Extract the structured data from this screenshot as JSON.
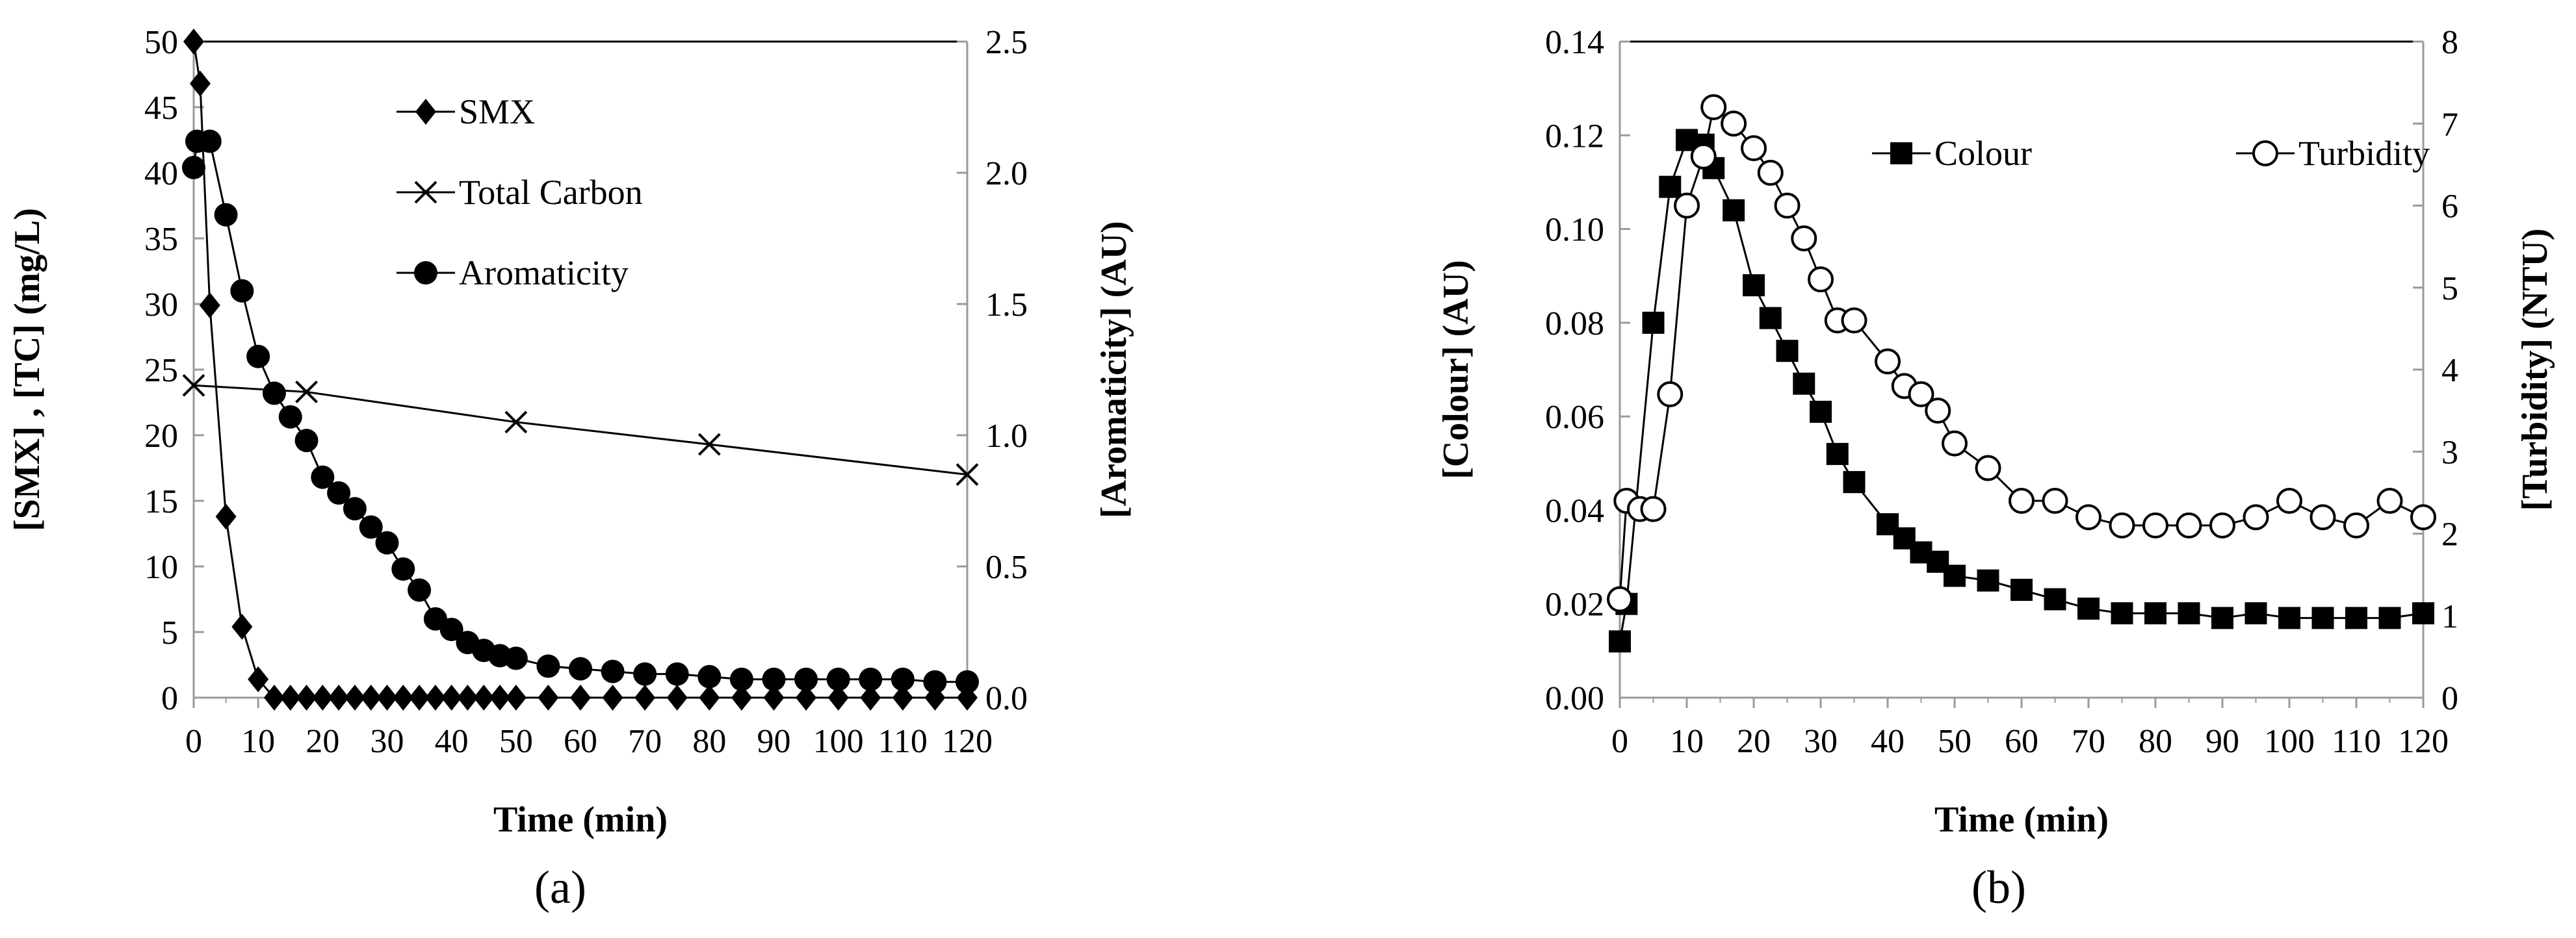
{
  "chart_data": [
    {
      "type": "line",
      "panel_label": "(a)",
      "xlabel": "Time (min)",
      "ylabel": "[SMX] , [TC] (mg/L)",
      "y2label": "[Aromaticity] (AU)",
      "xlim": [
        0,
        120
      ],
      "ylim": [
        0,
        50
      ],
      "y2lim": [
        0,
        2.5
      ],
      "x_ticks": [
        0,
        10,
        20,
        30,
        40,
        50,
        60,
        70,
        80,
        90,
        100,
        110,
        120
      ],
      "x_tick_labels": [
        "0",
        "10",
        "20",
        "30",
        "40",
        "50",
        "60",
        "70",
        "80",
        "90",
        "100",
        "110",
        "120"
      ],
      "y_ticks": [
        0,
        5,
        10,
        15,
        20,
        25,
        30,
        35,
        40,
        45,
        50
      ],
      "y_tick_labels": [
        "0",
        "5",
        "10",
        "15",
        "20",
        "25",
        "30",
        "35",
        "40",
        "45",
        "50"
      ],
      "y2_ticks": [
        0,
        0.5,
        1.0,
        1.5,
        2.0,
        2.5
      ],
      "y2_tick_labels": [
        "0.0",
        "0.5",
        "1.0",
        "1.5",
        "2.0",
        "2.5"
      ],
      "grid": false,
      "legend_position": "top-center",
      "series": [
        {
          "name": "SMX",
          "axis": "left",
          "marker": "diamond",
          "x": [
            0,
            1,
            2.5,
            5,
            7.5,
            10,
            12.5,
            15,
            17.5,
            20,
            22.5,
            25,
            27.5,
            30,
            32.5,
            35,
            37.5,
            40,
            42.5,
            45,
            47.5,
            50,
            55,
            60,
            65,
            70,
            75,
            80,
            85,
            90,
            95,
            100,
            105,
            110,
            115,
            120
          ],
          "y": [
            50,
            46.8,
            29.9,
            13.8,
            5.4,
            1.4,
            0,
            0,
            0,
            0,
            0,
            0,
            0,
            0,
            0,
            0,
            0,
            0,
            0,
            0,
            0,
            0,
            0,
            0,
            0,
            0,
            0,
            0,
            0,
            0,
            0,
            0,
            0,
            0,
            0,
            0
          ]
        },
        {
          "name": "Total Carbon",
          "axis": "left",
          "marker": "x",
          "x": [
            0,
            17.5,
            50,
            80,
            120
          ],
          "y": [
            23.8,
            23.3,
            21.0,
            19.3,
            17.0
          ]
        },
        {
          "name": "Aromaticity",
          "axis": "right",
          "marker": "circle",
          "x": [
            0,
            0.5,
            2.5,
            5,
            7.5,
            10,
            12.5,
            15,
            17.5,
            20,
            22.5,
            25,
            27.5,
            30,
            32.5,
            35,
            37.5,
            40,
            42.5,
            45,
            47.5,
            50,
            55,
            60,
            65,
            70,
            75,
            80,
            85,
            90,
            95,
            100,
            105,
            110,
            115,
            120
          ],
          "y": [
            2.02,
            2.12,
            2.12,
            1.84,
            1.55,
            1.3,
            1.16,
            1.07,
            0.98,
            0.84,
            0.78,
            0.72,
            0.65,
            0.59,
            0.49,
            0.41,
            0.3,
            0.26,
            0.21,
            0.18,
            0.16,
            0.15,
            0.12,
            0.11,
            0.1,
            0.09,
            0.09,
            0.08,
            0.07,
            0.07,
            0.07,
            0.07,
            0.07,
            0.07,
            0.06,
            0.06
          ]
        }
      ]
    },
    {
      "type": "line",
      "panel_label": "(b)",
      "xlabel": "Time (min)",
      "ylabel": "[Colour] (AU)",
      "y2label": "[Turbidity] (NTU)",
      "xlim": [
        0,
        120
      ],
      "ylim": [
        0,
        0.14
      ],
      "y2lim": [
        0,
        8
      ],
      "x_ticks": [
        0,
        10,
        20,
        30,
        40,
        50,
        60,
        70,
        80,
        90,
        100,
        110,
        120
      ],
      "x_tick_labels": [
        "0",
        "10",
        "20",
        "30",
        "40",
        "50",
        "60",
        "70",
        "80",
        "90",
        "100",
        "110",
        "120"
      ],
      "y_ticks": [
        0,
        0.02,
        0.04,
        0.06,
        0.08,
        0.1,
        0.12,
        0.14
      ],
      "y_tick_labels": [
        "0.00",
        "0.02",
        "0.04",
        "0.06",
        "0.08",
        "0.10",
        "0.12",
        "0.14"
      ],
      "y2_ticks": [
        0,
        1,
        2,
        3,
        4,
        5,
        6,
        7,
        8
      ],
      "y2_tick_labels": [
        "0",
        "1",
        "2",
        "3",
        "4",
        "5",
        "6",
        "7",
        "8"
      ],
      "grid": false,
      "legend_position": "top-right",
      "series": [
        {
          "name": "Colour",
          "axis": "left",
          "marker": "square",
          "x": [
            0,
            1,
            5,
            7.5,
            10,
            12.5,
            14,
            17,
            20,
            22.5,
            25,
            27.5,
            30,
            32.5,
            35,
            40,
            42.5,
            45,
            47.5,
            50,
            55,
            60,
            65,
            70,
            75,
            80,
            85,
            90,
            95,
            100,
            105,
            110,
            115,
            120
          ],
          "y": [
            0.012,
            0.02,
            0.08,
            0.109,
            0.119,
            0.118,
            0.113,
            0.104,
            0.088,
            0.081,
            0.074,
            0.067,
            0.061,
            0.052,
            0.046,
            0.037,
            0.034,
            0.031,
            0.029,
            0.026,
            0.025,
            0.023,
            0.021,
            0.019,
            0.018,
            0.018,
            0.018,
            0.017,
            0.018,
            0.017,
            0.017,
            0.017,
            0.017,
            0.018
          ]
        },
        {
          "name": "Turbidity",
          "axis": "right",
          "marker": "open-circle",
          "x": [
            0,
            1,
            3,
            5,
            7.5,
            10,
            12.5,
            14,
            17,
            20,
            22.5,
            25,
            27.5,
            30,
            32.5,
            35,
            40,
            42.5,
            45,
            47.5,
            50,
            55,
            60,
            65,
            70,
            75,
            80,
            85,
            90,
            95,
            100,
            105,
            110,
            115,
            120
          ],
          "y": [
            1.2,
            2.4,
            2.3,
            2.3,
            3.7,
            6.0,
            6.6,
            7.2,
            7.0,
            6.7,
            6.4,
            6.0,
            5.6,
            5.1,
            4.6,
            4.6,
            4.1,
            3.8,
            3.7,
            3.5,
            3.1,
            2.8,
            2.4,
            2.4,
            2.2,
            2.1,
            2.1,
            2.1,
            2.1,
            2.2,
            2.4,
            2.2,
            2.1,
            2.4,
            2.2
          ]
        }
      ]
    }
  ]
}
